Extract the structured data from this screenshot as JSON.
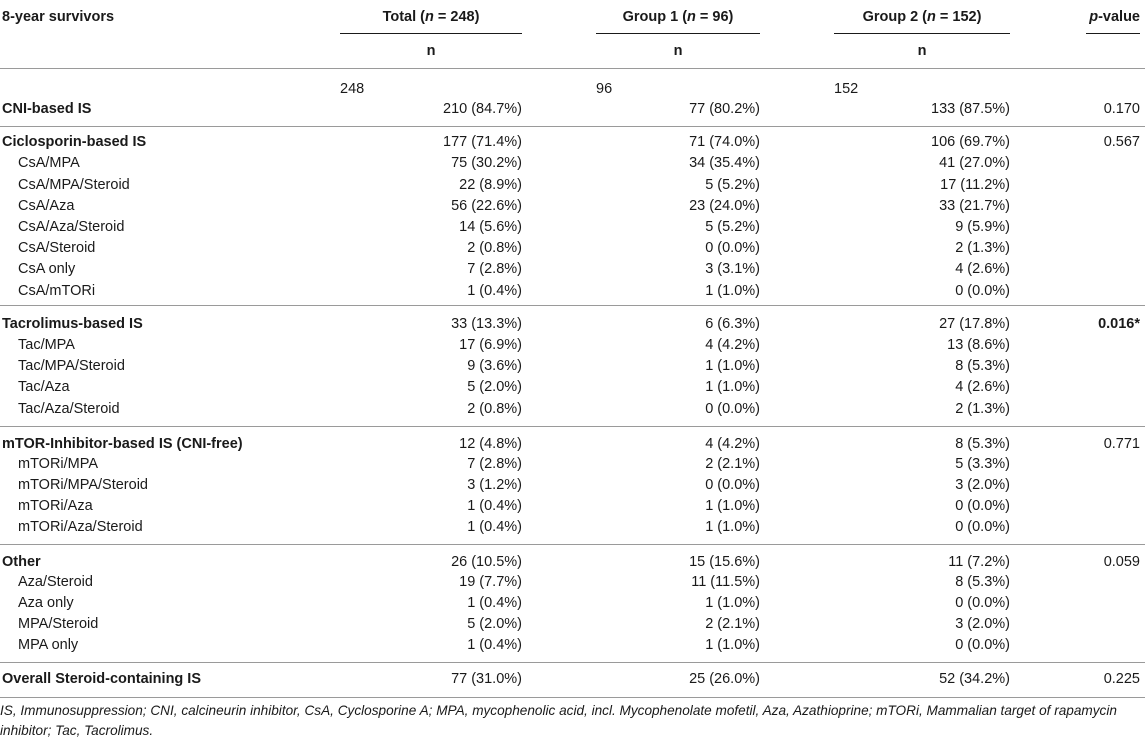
{
  "header": {
    "row_label": "8-year survivors",
    "total": {
      "pre": "Total (",
      "n": "n",
      "post": " = 248)"
    },
    "group1": {
      "pre": "Group 1 (",
      "n": "n",
      "post": " = 96)"
    },
    "group2": {
      "pre": "Group 2 (",
      "n": "n",
      "post": " = 152)"
    },
    "pvalue": {
      "p": "p",
      "post": "-value"
    },
    "n_label": "n",
    "counts": [
      "248",
      "96",
      "152"
    ]
  },
  "rows": [
    {
      "label": "CNI-based IS",
      "bold": true,
      "total": "210 (84.7%)",
      "g1": "77 (80.2%)",
      "g2": "133 (87.5%)",
      "p": "0.170"
    },
    {
      "label": "Ciclosporin-based IS",
      "bold": true,
      "total": "177 (71.4%)",
      "g1": "71 (74.0%)",
      "g2": "106 (69.7%)",
      "p": "0.567"
    },
    {
      "label": "CsA/MPA",
      "total": "75 (30.2%)",
      "g1": "34 (35.4%)",
      "g2": "41 (27.0%)",
      "p": ""
    },
    {
      "label": "CsA/MPA/Steroid",
      "total": "22 (8.9%)",
      "g1": "5 (5.2%)",
      "g2": "17 (11.2%)",
      "p": ""
    },
    {
      "label": "CsA/Aza",
      "total": "56 (22.6%)",
      "g1": "23 (24.0%)",
      "g2": "33 (21.7%)",
      "p": ""
    },
    {
      "label": "CsA/Aza/Steroid",
      "total": "14 (5.6%)",
      "g1": "5 (5.2%)",
      "g2": "9 (5.9%)",
      "p": ""
    },
    {
      "label": "CsA/Steroid",
      "total": "2 (0.8%)",
      "g1": "0 (0.0%)",
      "g2": "2 (1.3%)",
      "p": ""
    },
    {
      "label": "CsA only",
      "total": "7 (2.8%)",
      "g1": "3 (3.1%)",
      "g2": "4 (2.6%)",
      "p": ""
    },
    {
      "label": "CsA/mTORi",
      "total": "1 (0.4%)",
      "g1": "1 (1.0%)",
      "g2": "0 (0.0%)",
      "p": ""
    },
    {
      "label": "Tacrolimus-based IS",
      "bold": true,
      "total": "33 (13.3%)",
      "g1": "6 (6.3%)",
      "g2": "27 (17.8%)",
      "p": "0.016*",
      "pbold": true
    },
    {
      "label": "Tac/MPA",
      "total": "17 (6.9%)",
      "g1": "4 (4.2%)",
      "g2": "13 (8.6%)",
      "p": ""
    },
    {
      "label": "Tac/MPA/Steroid",
      "total": "9 (3.6%)",
      "g1": "1 (1.0%)",
      "g2": "8 (5.3%)",
      "p": ""
    },
    {
      "label": "Tac/Aza",
      "total": "5 (2.0%)",
      "g1": "1 (1.0%)",
      "g2": "4 (2.6%)",
      "p": ""
    },
    {
      "label": "Tac/Aza/Steroid",
      "total": "2 (0.8%)",
      "g1": "0 (0.0%)",
      "g2": "2 (1.3%)",
      "p": ""
    },
    {
      "label": "mTOR-Inhibitor-based IS (CNI-free)",
      "bold": true,
      "total": "12 (4.8%)",
      "g1": "4 (4.2%)",
      "g2": "8 (5.3%)",
      "p": "0.771"
    },
    {
      "label": "mTORi/MPA",
      "total": "7 (2.8%)",
      "g1": "2 (2.1%)",
      "g2": "5 (3.3%)",
      "p": ""
    },
    {
      "label": "mTORi/MPA/Steroid",
      "total": "3 (1.2%)",
      "g1": "0 (0.0%)",
      "g2": "3 (2.0%)",
      "p": ""
    },
    {
      "label": "mTORi/Aza",
      "total": "1 (0.4%)",
      "g1": "1 (1.0%)",
      "g2": "0 (0.0%)",
      "p": ""
    },
    {
      "label": "mTORi/Aza/Steroid",
      "total": "1 (0.4%)",
      "g1": "1 (1.0%)",
      "g2": "0 (0.0%)",
      "p": ""
    },
    {
      "label": "Other",
      "bold": true,
      "total": "26 (10.5%)",
      "g1": "15 (15.6%)",
      "g2": "11 (7.2%)",
      "p": "0.059"
    },
    {
      "label": "Aza/Steroid",
      "total": "19 (7.7%)",
      "g1": "11 (11.5%)",
      "g2": "8 (5.3%)",
      "p": ""
    },
    {
      "label": "Aza only",
      "total": "1 (0.4%)",
      "g1": "1 (1.0%)",
      "g2": "0 (0.0%)",
      "p": ""
    },
    {
      "label": "MPA/Steroid",
      "total": "5 (2.0%)",
      "g1": "2 (2.1%)",
      "g2": "3 (2.0%)",
      "p": ""
    },
    {
      "label": "MPA only",
      "total": "1 (0.4%)",
      "g1": "1 (1.0%)",
      "g2": "0 (0.0%)",
      "p": ""
    },
    {
      "label": "Overall Steroid-containing IS",
      "bold": true,
      "total": "77 (31.0%)",
      "g1": "25 (26.0%)",
      "g2": "52 (34.2%)",
      "p": "0.225"
    }
  ],
  "footnote": "IS, Immunosuppression; CNI, calcineurin inhibitor, CsA, Cyclosporine A; MPA, mycophenolic acid, incl. Mycophenolate mofetil, Aza, Azathioprine; mTORi, Mammalian target of rapamycin inhibitor; Tac, Tacrolimus."
}
